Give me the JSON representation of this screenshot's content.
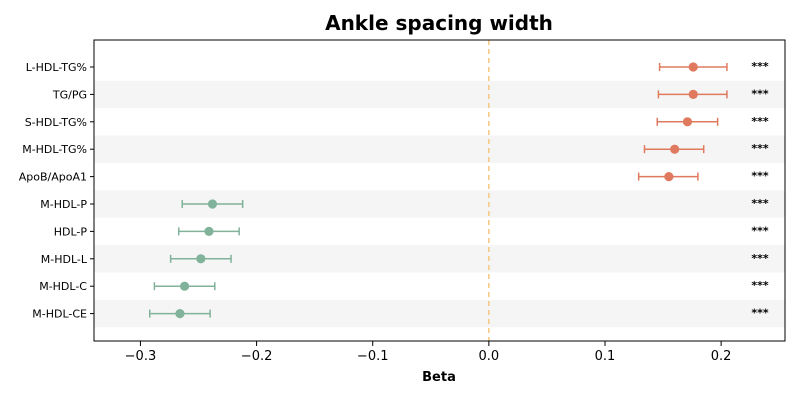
{
  "chart_data": {
    "type": "scatter",
    "title": "Ankle spacing width",
    "xlabel": "Beta",
    "ylabel": "",
    "xlim": [
      -0.34,
      0.255
    ],
    "xticks": [
      -0.3,
      -0.2,
      -0.1,
      0.0,
      0.1,
      0.2
    ],
    "xtick_labels": [
      "−0.3",
      "−0.2",
      "−0.1",
      "0.0",
      "0.1",
      "0.2"
    ],
    "reference_line": {
      "x": 0.0,
      "style": "dashed",
      "color": "#f5c77e"
    },
    "grid": false,
    "row_banding": true,
    "colors": {
      "positive": "#e07a5f",
      "negative": "#81b29a",
      "band": "#f5f5f5"
    },
    "categories": [
      "L-HDL-TG%",
      "TG/PG",
      "S-HDL-TG%",
      "M-HDL-TG%",
      "ApoB/ApoA1",
      "M-HDL-P",
      "HDL-P",
      "M-HDL-L",
      "M-HDL-C",
      "M-HDL-CE"
    ],
    "beta": [
      0.176,
      0.176,
      0.171,
      0.16,
      0.155,
      -0.238,
      -0.241,
      -0.248,
      -0.262,
      -0.266
    ],
    "ci_low": [
      0.147,
      0.146,
      0.145,
      0.134,
      0.129,
      -0.264,
      -0.267,
      -0.274,
      -0.288,
      -0.292
    ],
    "ci_high": [
      0.205,
      0.205,
      0.197,
      0.185,
      0.18,
      -0.212,
      -0.215,
      -0.222,
      -0.236,
      -0.24
    ],
    "significance": [
      "***",
      "***",
      "***",
      "***",
      "***",
      "***",
      "***",
      "***",
      "***",
      "***"
    ]
  }
}
